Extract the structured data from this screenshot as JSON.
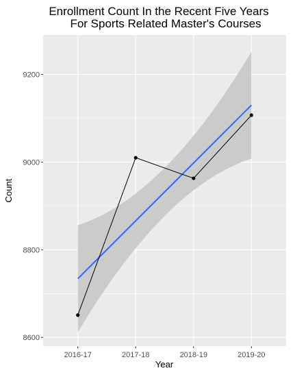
{
  "chart_data": {
    "type": "line",
    "title": "Enrollment Count In the Recent Five Years",
    "subtitle": "For Sports Related Master's Courses",
    "xlabel": "Year",
    "ylabel": "Count",
    "categories": [
      "2016-17",
      "2017-18",
      "2018-19",
      "2019-20"
    ],
    "values": [
      8651,
      9010,
      8963,
      9107
    ],
    "trend": {
      "start": 8734,
      "end": 9130,
      "ci_low_start": 8612,
      "ci_high_start": 8856,
      "ci_low_end": 9008,
      "ci_high_end": 9252
    },
    "yticks": [
      8600,
      8800,
      9000,
      9200
    ],
    "ylim": [
      8580,
      9290
    ],
    "grid": true,
    "colors": {
      "panel": "#ebebeb",
      "grid": "#ffffff",
      "trend_line": "#3366ff",
      "band": "#c8c8c8",
      "series": "#000000"
    }
  }
}
